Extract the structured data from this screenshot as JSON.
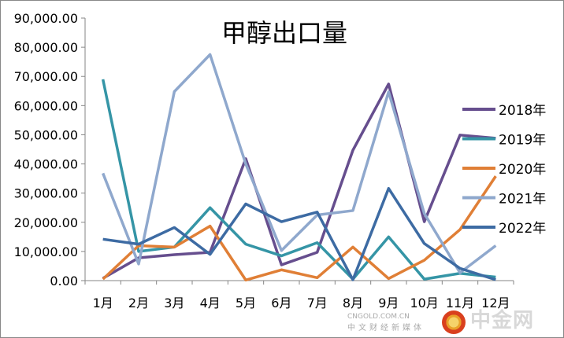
{
  "chart_data": {
    "type": "line",
    "title": "甲醇出口量",
    "xlabel": "",
    "ylabel": "",
    "categories": [
      "1月",
      "2月",
      "3月",
      "4月",
      "5月",
      "6月",
      "7月",
      "8月",
      "9月",
      "10月",
      "11月",
      "12月"
    ],
    "ylim": [
      0,
      90000
    ],
    "yticks": [
      "0.00",
      "10,000.00",
      "20,000.00",
      "30,000.00",
      "40,000.00",
      "50,000.00",
      "60,000.00",
      "70,000.00",
      "80,000.00",
      "90,000.00"
    ],
    "grid": false,
    "legend_position": "right",
    "series": [
      {
        "name": "2018年",
        "color": "#664E8E",
        "values": [
          800,
          7800,
          8900,
          9700,
          41800,
          5400,
          9700,
          44700,
          67400,
          20200,
          49900,
          48800
        ]
      },
      {
        "name": "2019年",
        "color": "#3595A6",
        "values": [
          69000,
          10000,
          11500,
          25000,
          12500,
          8500,
          13000,
          500,
          15000,
          500,
          2500,
          1200
        ]
      },
      {
        "name": "2020年",
        "color": "#E07F36",
        "values": [
          500,
          12000,
          11500,
          18700,
          200,
          3700,
          1000,
          11500,
          700,
          7000,
          17500,
          35800
        ]
      },
      {
        "name": "2021年",
        "color": "#8FA8CD",
        "values": [
          36800,
          5700,
          64800,
          77500,
          40000,
          10300,
          22500,
          24000,
          64700,
          23000,
          2700,
          12000
        ]
      },
      {
        "name": "2022年",
        "color": "#3D6BA3",
        "values": [
          14200,
          12500,
          18200,
          9000,
          26300,
          20200,
          23500,
          300,
          31600,
          12700,
          4200,
          300
        ]
      }
    ]
  },
  "watermark": {
    "name": "中金网",
    "url": "CNGOLD.COM.CN",
    "tagline": "中文财经新媒体"
  }
}
